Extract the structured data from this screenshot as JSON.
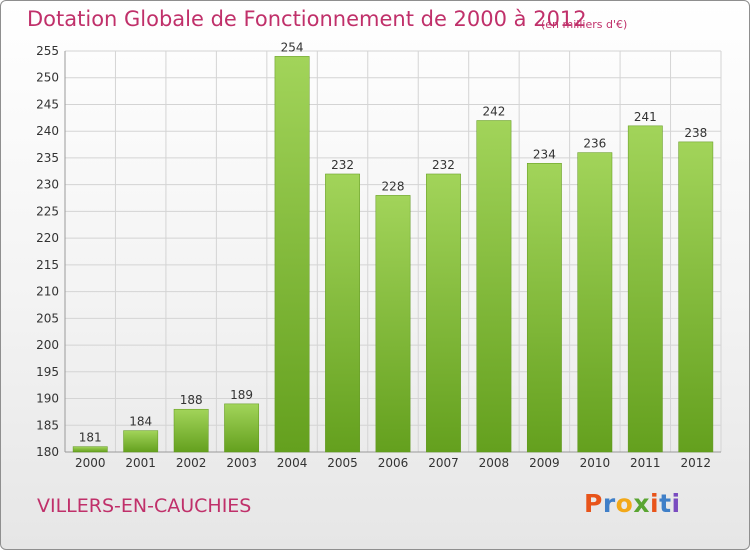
{
  "header": {
    "title": "Dotation Globale de Fonctionnement de 2000 à 2012",
    "unit": "(en milliers d'€)"
  },
  "footer": {
    "commune": "VILLERS-EN-CAUCHIES",
    "brand": "Proxiti",
    "brand_colors": [
      "#e8541a",
      "#3f7fc8",
      "#f2a818",
      "#5aa532",
      "#e8541a",
      "#3f7fc8",
      "#7a4cc0"
    ]
  },
  "colors": {
    "title": "#c0306a",
    "bar_light": "#a2d45a",
    "bar_dark": "#64a01e",
    "grid": "#d4d4d4"
  },
  "chart_data": {
    "type": "bar",
    "title": "Dotation Globale de Fonctionnement de 2000 à 2012",
    "subtitle": "(en milliers d'€)",
    "xlabel": "",
    "ylabel": "",
    "categories": [
      "2000",
      "2001",
      "2002",
      "2003",
      "2004",
      "2005",
      "2006",
      "2007",
      "2008",
      "2009",
      "2010",
      "2011",
      "2012"
    ],
    "values": [
      181,
      184,
      188,
      189,
      254,
      232,
      228,
      232,
      242,
      234,
      236,
      241,
      238
    ],
    "ylim": [
      180,
      255
    ],
    "yticks": [
      180,
      185,
      190,
      195,
      200,
      205,
      210,
      215,
      220,
      225,
      230,
      235,
      240,
      245,
      250,
      255
    ],
    "grid": true,
    "data_labels": true
  }
}
